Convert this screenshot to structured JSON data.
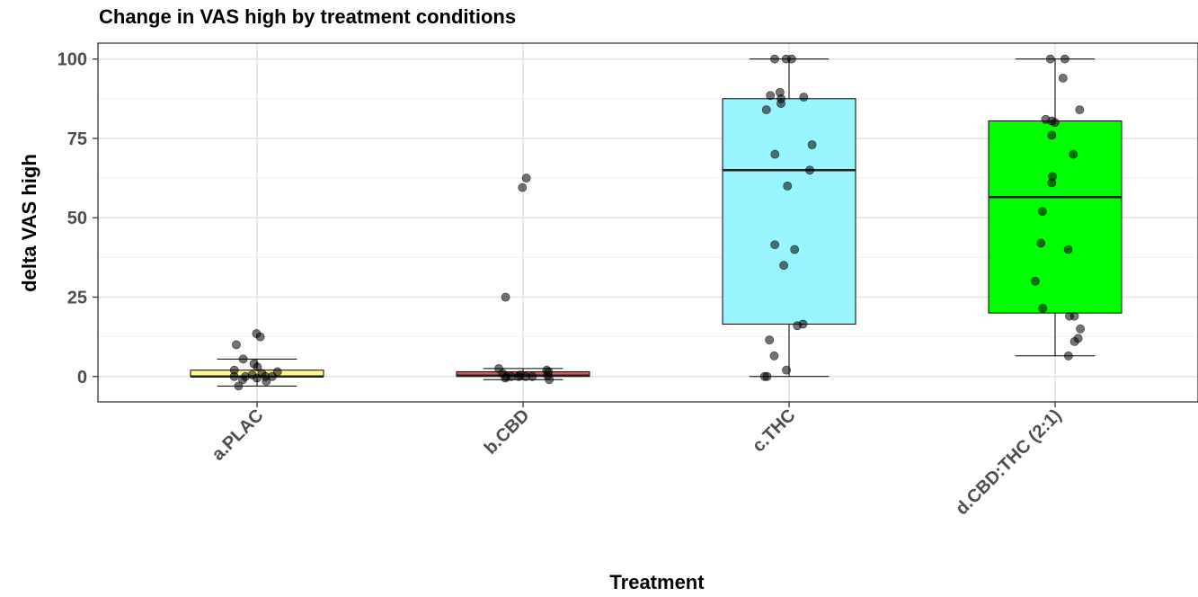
{
  "chart_data": {
    "type": "box",
    "title": "Change in VAS high by treatment conditions",
    "xlabel": "Treatment",
    "ylabel": "delta VAS high",
    "ylim": [
      -8,
      105
    ],
    "yticks": [
      0,
      25,
      50,
      75,
      100
    ],
    "grid": true,
    "categories": [
      "a.PLAC",
      "b.CBD",
      "c.THC",
      "d.CBD:THC (2:1)"
    ],
    "series": [
      {
        "category": "a.PLAC",
        "color": "#fff68f",
        "whisker_low": -3,
        "q1": 0,
        "median": 0,
        "q3": 2,
        "whisker_high": 5.5,
        "points": [
          13.5,
          12.5,
          10,
          5.5,
          4,
          3,
          2,
          1.5,
          1,
          0.5,
          0,
          0,
          0,
          0,
          -0.5,
          -1,
          -1.5,
          -3
        ]
      },
      {
        "category": "b.CBD",
        "color": "#cd5c5c",
        "whisker_low": -1,
        "q1": 0,
        "median": 0.3,
        "q3": 1.5,
        "whisker_high": 2.5,
        "points": [
          62.5,
          59.5,
          25,
          2.5,
          2,
          1.5,
          1,
          0.5,
          0.3,
          0,
          0,
          0,
          0,
          0,
          -0.5,
          -1
        ]
      },
      {
        "category": "c.THC",
        "color": "#98f5ff",
        "whisker_low": 0,
        "q1": 16.5,
        "median": 65,
        "q3": 87.5,
        "whisker_high": 100,
        "points": [
          100,
          100,
          100,
          89.5,
          88.5,
          88,
          87.5,
          86,
          84,
          73,
          70,
          65,
          60,
          41.5,
          40,
          35,
          16.5,
          16,
          11.5,
          6.5,
          2,
          0,
          0
        ]
      },
      {
        "category": "d.CBD:THC (2:1)",
        "color": "#00ff00",
        "whisker_low": 6.5,
        "q1": 20,
        "median": 56.5,
        "q3": 80.5,
        "whisker_high": 100,
        "points": [
          100,
          100,
          94,
          84,
          81,
          80.5,
          80,
          76,
          70,
          63,
          61,
          52,
          42,
          40,
          30,
          21.5,
          19,
          19,
          15,
          12,
          11,
          6.5
        ]
      }
    ]
  }
}
